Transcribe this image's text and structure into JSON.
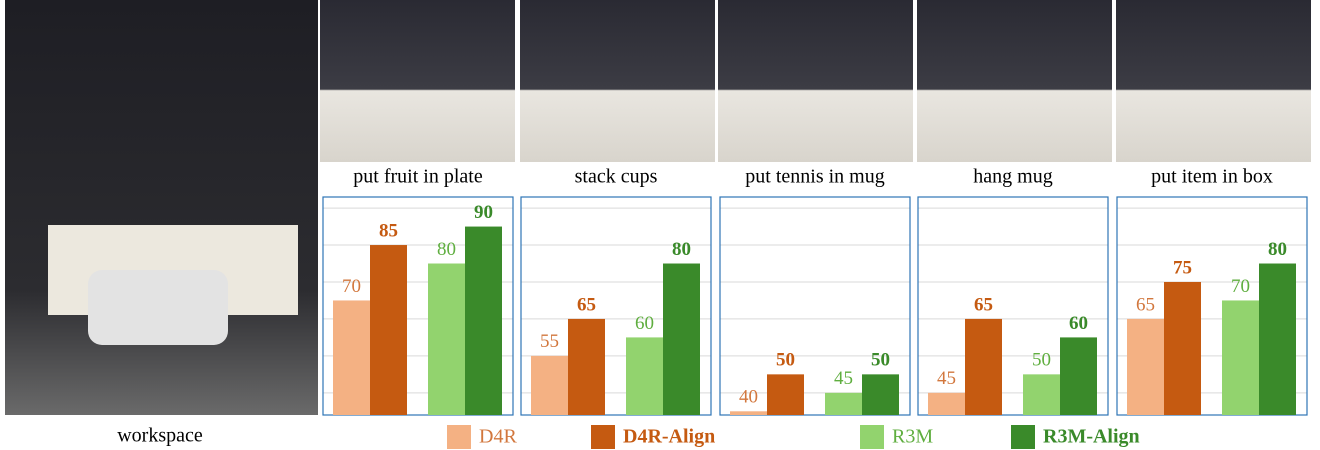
{
  "workspace_caption": "workspace",
  "legend": {
    "series": [
      {
        "name": "D4R",
        "color": "#f4b183"
      },
      {
        "name": "D4R-Align",
        "color": "#c55a11"
      },
      {
        "name": "R3M",
        "color": "#92d36e"
      },
      {
        "name": "R3M-Align",
        "color": "#3a8a2a"
      }
    ]
  },
  "chart_data": [
    {
      "type": "bar",
      "title": "put fruit in plate",
      "values": [
        70,
        85,
        80,
        90
      ],
      "ylim": [
        39,
        98
      ],
      "yticks": [
        45,
        55,
        65,
        75,
        85,
        95
      ],
      "grid": true
    },
    {
      "type": "bar",
      "title": "stack cups",
      "values": [
        55,
        65,
        60,
        80
      ],
      "ylim": [
        39,
        98
      ],
      "yticks": [
        45,
        55,
        65,
        75,
        85,
        95
      ],
      "grid": true
    },
    {
      "type": "bar",
      "title": "put tennis in mug",
      "values": [
        40,
        50,
        45,
        50
      ],
      "ylim": [
        39,
        98
      ],
      "yticks": [
        45,
        55,
        65,
        75,
        85,
        95
      ],
      "grid": true
    },
    {
      "type": "bar",
      "title": "hang mug",
      "values": [
        45,
        65,
        50,
        60
      ],
      "ylim": [
        39,
        98
      ],
      "yticks": [
        45,
        55,
        65,
        75,
        85,
        95
      ],
      "grid": true
    },
    {
      "type": "bar",
      "title": "put item in box",
      "values": [
        65,
        75,
        70,
        80
      ],
      "ylim": [
        39,
        98
      ],
      "yticks": [
        45,
        55,
        65,
        75,
        85,
        95
      ],
      "grid": true
    }
  ]
}
